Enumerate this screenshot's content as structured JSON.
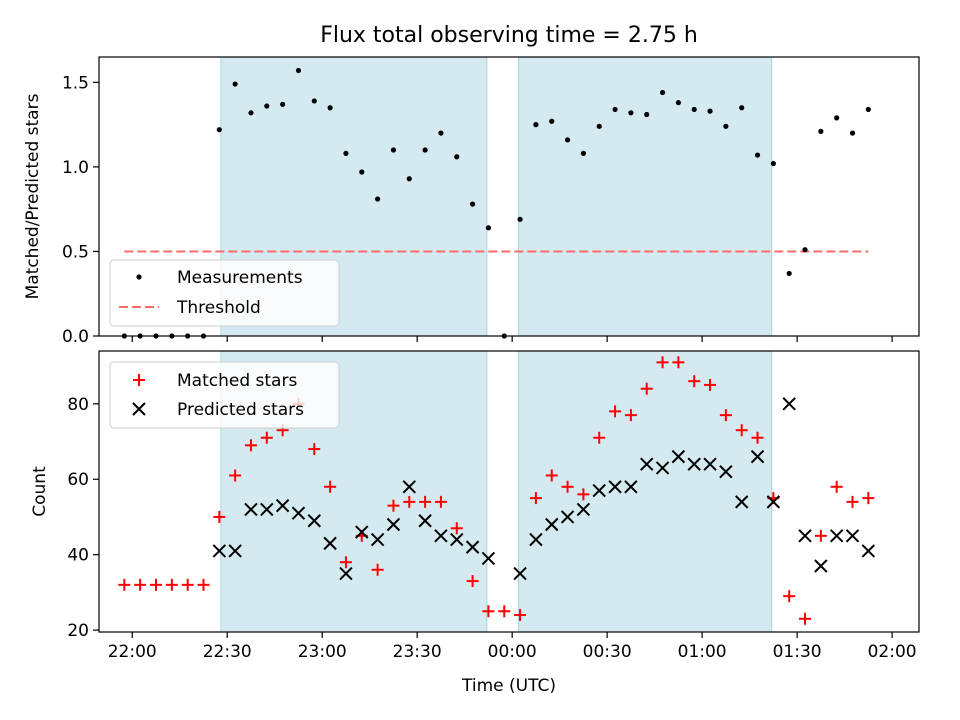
{
  "figure": {
    "title": "Flux total observing time = 2.75 h"
  },
  "chart_data": [
    {
      "type": "scatter",
      "ylabel": "Matched/Predicted stars",
      "ylim": [
        0,
        1.65
      ],
      "yticks": [
        0,
        0.5,
        1.0,
        1.5
      ],
      "ytick_labels": [
        "0.0",
        "0.5",
        "1.0",
        "1.5"
      ],
      "xlim": [
        -10.5,
        248.5
      ],
      "x_unit": "minutes after 22:00 UTC",
      "shaded_spans": [
        [
          28,
          112
        ],
        [
          122,
          202
        ]
      ],
      "shade_color": "#d4eaf0",
      "legend": {
        "placement": "lower-left",
        "entries": [
          "Measurements",
          "Threshold"
        ]
      },
      "threshold": {
        "name": "Threshold",
        "y": 0.5,
        "x_range": [
          -2.5,
          232.5
        ],
        "color": "#ff6b6b"
      },
      "series": [
        {
          "name": "Measurements",
          "color": "#000000",
          "x": [
            -2.5,
            2.5,
            7.5,
            12.5,
            17.5,
            22.5,
            27.5,
            32.5,
            37.5,
            42.5,
            47.5,
            52.5,
            57.5,
            62.5,
            67.5,
            72.5,
            77.5,
            82.5,
            87.5,
            92.5,
            97.5,
            102.5,
            107.5,
            112.5,
            117.5,
            122.5,
            127.5,
            132.5,
            137.5,
            142.5,
            147.5,
            152.5,
            157.5,
            162.5,
            167.5,
            172.5,
            177.5,
            182.5,
            187.5,
            192.5,
            197.5,
            202.5,
            207.5,
            212.5,
            217.5,
            222.5,
            227.5,
            232.5
          ],
          "y": [
            0.0,
            0.0,
            0.0,
            0.0,
            0.0,
            0.0,
            1.22,
            1.49,
            1.32,
            1.36,
            1.37,
            1.57,
            1.39,
            1.35,
            1.08,
            0.97,
            0.81,
            1.1,
            0.93,
            1.1,
            1.2,
            1.06,
            0.78,
            0.64,
            0.0,
            0.69,
            1.25,
            1.27,
            1.16,
            1.08,
            1.24,
            1.34,
            1.32,
            1.31,
            1.44,
            1.38,
            1.34,
            1.33,
            1.24,
            1.35,
            1.07,
            1.02,
            0.37,
            0.51,
            1.21,
            1.29,
            1.2,
            1.34
          ]
        }
      ]
    },
    {
      "type": "scatter",
      "ylabel": "Count",
      "xlabel": "Time (UTC)",
      "ylim": [
        19.5,
        94
      ],
      "yticks": [
        20,
        40,
        60,
        80
      ],
      "ytick_labels": [
        "20",
        "40",
        "60",
        "80"
      ],
      "xlim": [
        -10.5,
        248.5
      ],
      "xticks": [
        0,
        30,
        60,
        90,
        120,
        150,
        180,
        210,
        240
      ],
      "xtick_labels": [
        "22:00",
        "22:30",
        "23:00",
        "23:30",
        "00:00",
        "00:30",
        "01:00",
        "01:30",
        "02:00"
      ],
      "shaded_spans": [
        [
          28,
          112
        ],
        [
          122,
          202
        ]
      ],
      "legend": {
        "placement": "upper-left",
        "entries": [
          "Matched stars",
          "Predicted stars"
        ]
      },
      "series": [
        {
          "name": "Matched stars",
          "marker": "plus",
          "color": "#ff0000",
          "x": [
            -2.5,
            2.5,
            7.5,
            12.5,
            17.5,
            22.5,
            27.5,
            32.5,
            37.5,
            42.5,
            47.5,
            52.5,
            57.5,
            62.5,
            67.5,
            72.5,
            77.5,
            82.5,
            87.5,
            92.5,
            97.5,
            102.5,
            107.5,
            112.5,
            117.5,
            122.5,
            127.5,
            132.5,
            137.5,
            142.5,
            147.5,
            152.5,
            157.5,
            162.5,
            167.5,
            172.5,
            177.5,
            182.5,
            187.5,
            192.5,
            197.5,
            202.5,
            207.5,
            212.5,
            217.5,
            222.5,
            227.5,
            232.5
          ],
          "y": [
            32,
            32,
            32,
            32,
            32,
            32,
            50,
            61,
            69,
            71,
            73,
            80,
            68,
            58,
            38,
            45,
            36,
            53,
            54,
            54,
            54,
            47,
            33,
            25,
            25,
            24,
            55,
            61,
            58,
            56,
            71,
            78,
            77,
            84,
            91,
            91,
            86,
            85,
            77,
            73,
            71,
            55,
            29,
            23,
            45,
            58,
            54,
            55
          ]
        },
        {
          "name": "Predicted stars",
          "marker": "cross",
          "color": "#000000",
          "x": [
            27.5,
            32.5,
            37.5,
            42.5,
            47.5,
            52.5,
            57.5,
            62.5,
            67.5,
            72.5,
            77.5,
            82.5,
            87.5,
            92.5,
            97.5,
            102.5,
            107.5,
            112.5,
            122.5,
            127.5,
            132.5,
            137.5,
            142.5,
            147.5,
            152.5,
            157.5,
            162.5,
            167.5,
            172.5,
            177.5,
            182.5,
            187.5,
            192.5,
            197.5,
            202.5,
            207.5,
            212.5,
            217.5,
            222.5,
            227.5,
            232.5
          ],
          "y": [
            41,
            41,
            52,
            52,
            53,
            51,
            49,
            43,
            35,
            46,
            44,
            48,
            58,
            49,
            45,
            44,
            42,
            39,
            35,
            44,
            48,
            50,
            52,
            57,
            58,
            58,
            64,
            63,
            66,
            64,
            64,
            62,
            54,
            66,
            54,
            80,
            45,
            37,
            45,
            45,
            41
          ]
        }
      ]
    }
  ]
}
